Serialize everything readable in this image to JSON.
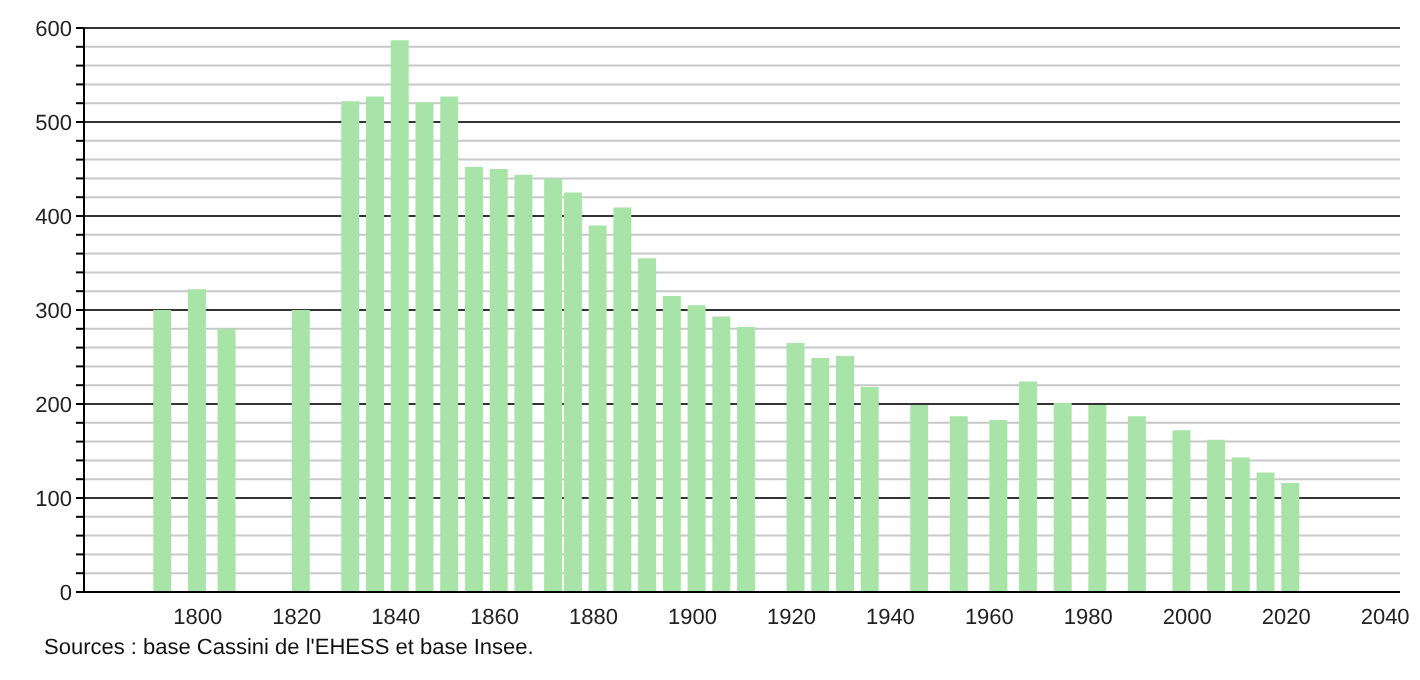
{
  "chart_data": {
    "type": "bar",
    "x": [
      1793,
      1800,
      1806,
      1821,
      1831,
      1836,
      1841,
      1846,
      1851,
      1856,
      1861,
      1866,
      1872,
      1876,
      1881,
      1886,
      1891,
      1896,
      1901,
      1906,
      1911,
      1921,
      1926,
      1931,
      1936,
      1946,
      1954,
      1962,
      1968,
      1975,
      1982,
      1990,
      1999,
      2006,
      2011,
      2016,
      2021
    ],
    "values": [
      300,
      322,
      280,
      300,
      522,
      527,
      587,
      521,
      527,
      452,
      450,
      444,
      440,
      425,
      390,
      409,
      355,
      315,
      305,
      293,
      282,
      265,
      249,
      251,
      218,
      199,
      187,
      183,
      224,
      201,
      199,
      187,
      172,
      162,
      143,
      127,
      116
    ],
    "color": "#a8e4a8",
    "xlim": [
      1777,
      2043
    ],
    "xticks": [
      1800,
      1820,
      1840,
      1860,
      1880,
      1900,
      1920,
      1940,
      1960,
      1980,
      2000,
      2020,
      2040
    ],
    "ylim": [
      0,
      600
    ],
    "yticks": [
      0,
      {
        "value": 20,
        "label": null
      },
      {
        "value": 40,
        "label": null
      },
      {
        "value": 60,
        "label": null
      },
      {
        "value": 80,
        "label": null
      },
      100,
      {
        "value": 120,
        "label": null
      },
      {
        "value": 140,
        "label": null
      },
      {
        "value": 160,
        "label": null
      },
      {
        "value": 180,
        "label": null
      },
      200,
      {
        "value": 220,
        "label": null
      },
      {
        "value": 240,
        "label": null
      },
      {
        "value": 260,
        "label": null
      },
      {
        "value": 280,
        "label": null
      },
      300,
      {
        "value": 320,
        "label": null
      },
      {
        "value": 340,
        "label": null
      },
      {
        "value": 360,
        "label": null
      },
      {
        "value": 380,
        "label": null
      },
      400,
      {
        "value": 420,
        "label": null
      },
      {
        "value": 440,
        "label": null
      },
      {
        "value": 460,
        "label": null
      },
      {
        "value": 480,
        "label": null
      },
      500,
      {
        "value": 520,
        "label": null
      },
      {
        "value": 540,
        "label": null
      },
      {
        "value": 560,
        "label": null
      },
      {
        "value": 580,
        "label": null
      },
      600
    ],
    "grid": "y",
    "legend": false,
    "annotations": [
      "Sources : base Cassini de l'EHESS et base Insee."
    ]
  }
}
